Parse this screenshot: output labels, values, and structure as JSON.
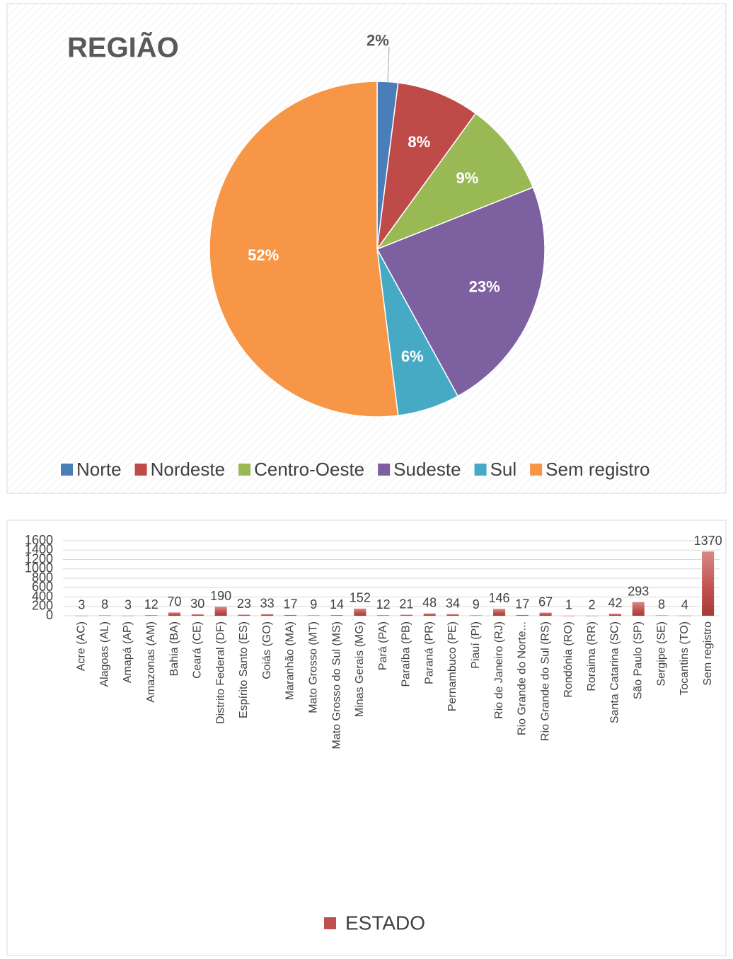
{
  "chart_data": [
    {
      "type": "pie",
      "title": "REGIÃO",
      "categories": [
        "Norte",
        "Nordeste",
        "Centro-Oeste",
        "Sudeste",
        "Sul",
        "Sem registro"
      ],
      "values": [
        2,
        8,
        9,
        23,
        6,
        52
      ],
      "value_labels": [
        "2%",
        "8%",
        "9%",
        "23%",
        "6%",
        "52%"
      ],
      "colors": [
        "#4a7ebb",
        "#be4b48",
        "#98b954",
        "#7d60a0",
        "#46aac5",
        "#f79646"
      ],
      "legend": "bottom"
    },
    {
      "type": "bar",
      "categories": [
        "Acre (AC)",
        "Alagoas (AL)",
        "Amapá (AP)",
        "Amazonas (AM)",
        "Bahia (BA)",
        "Ceará (CE)",
        "Distrito Federal (DF)",
        "Espírito Santo (ES)",
        "Goiás (GO)",
        "Maranhão (MA)",
        "Mato Grosso (MT)",
        "Mato Grosso do Sul (MS)",
        "Minas Gerais (MG)",
        "Pará (PA)",
        "Paraíba (PB)",
        "Paraná (PR)",
        "Pernambuco (PE)",
        "Piauí (PI)",
        "Rio de Janeiro (RJ)",
        "Rio Grande do Norte...",
        "Rio Grande do Sul (RS)",
        "Rondônia (RO)",
        "Roraima (RR)",
        "Santa Catarina (SC)",
        "São Paulo (SP)",
        "Sergipe (SE)",
        "Tocantins (TO)",
        "Sem registro"
      ],
      "series": [
        {
          "name": "ESTADO",
          "color": "#c0504d",
          "values": [
            3,
            8,
            3,
            12,
            70,
            30,
            190,
            23,
            33,
            17,
            9,
            14,
            152,
            12,
            21,
            48,
            34,
            9,
            146,
            17,
            67,
            1,
            2,
            42,
            293,
            8,
            4,
            1370
          ]
        }
      ],
      "ylim": [
        0,
        1600
      ],
      "yticks": [
        0,
        200,
        400,
        600,
        800,
        1000,
        1200,
        1400,
        1600
      ],
      "grid": true,
      "legend": "bottom"
    }
  ]
}
